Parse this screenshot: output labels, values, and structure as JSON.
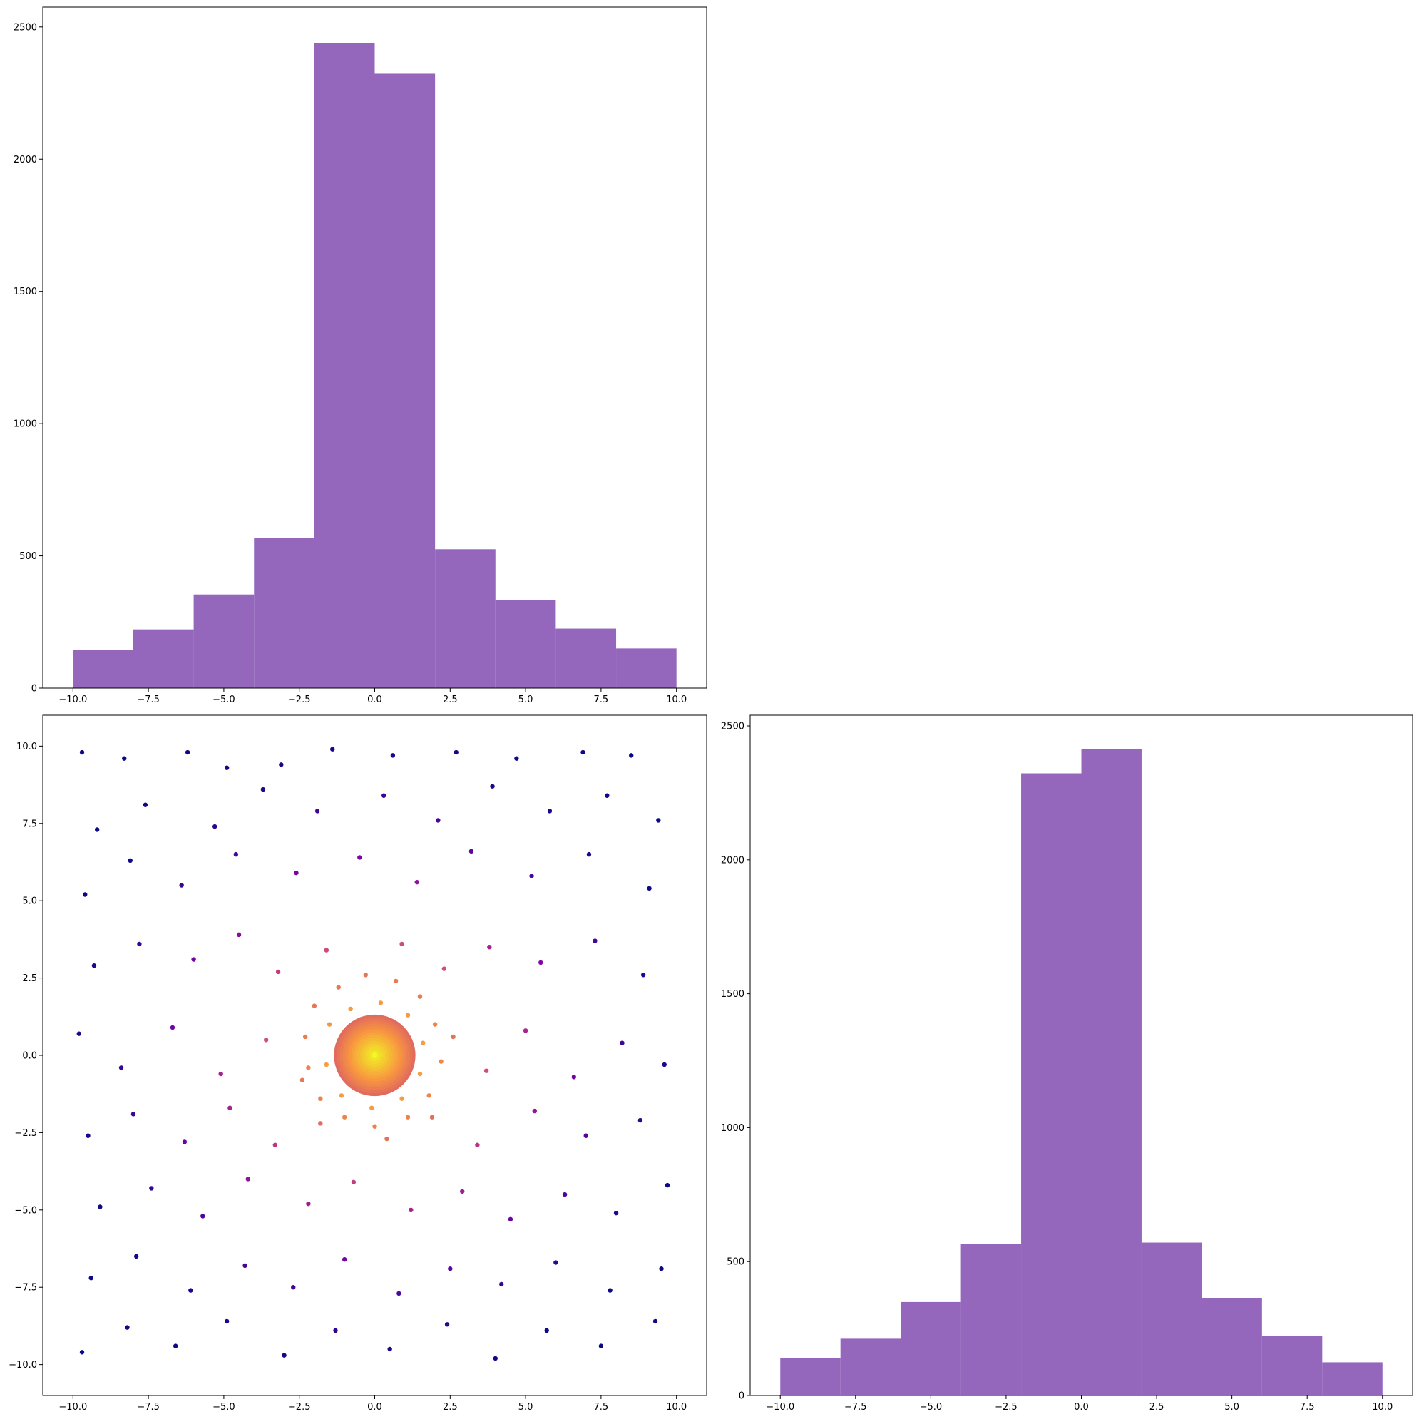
{
  "colors": {
    "hist_bar": "#9467bd",
    "axis": "#000000",
    "scatter_colormap": "plasma"
  },
  "chart_data": [
    {
      "type": "bar",
      "panel": "top-left",
      "bin_edges": [
        -10,
        -8,
        -6,
        -4,
        -2,
        0,
        2,
        4,
        6,
        8,
        10
      ],
      "values": [
        143,
        222,
        354,
        568,
        2440,
        2323,
        525,
        332,
        225,
        150
      ],
      "xlim": [
        -11,
        11
      ],
      "ylim": [
        0,
        2575
      ],
      "xticks": [
        -10,
        -7.5,
        -5,
        -2.5,
        0,
        2.5,
        5,
        7.5,
        10
      ],
      "xtick_labels": [
        "−10.0",
        "−7.5",
        "−5.0",
        "−2.5",
        "0.0",
        "2.5",
        "5.0",
        "7.5",
        "10.0"
      ],
      "yticks": [
        0,
        500,
        1000,
        1500,
        2000,
        2500
      ],
      "ytick_labels": [
        "0",
        "500",
        "1000",
        "1500",
        "2000",
        "2500"
      ]
    },
    {
      "type": "scatter",
      "panel": "bottom-left",
      "xlim": [
        -11,
        11
      ],
      "ylim": [
        -11,
        11
      ],
      "xticks": [
        -10,
        -7.5,
        -5,
        -2.5,
        0,
        2.5,
        5,
        7.5,
        10
      ],
      "xtick_labels": [
        "−10.0",
        "−7.5",
        "−5.0",
        "−2.5",
        "0.0",
        "2.5",
        "5.0",
        "7.5",
        "10.0"
      ],
      "yticks": [
        -10,
        -7.5,
        -5,
        -2.5,
        0,
        2.5,
        5,
        7.5,
        10
      ],
      "ytick_labels": [
        "−10.0",
        "−7.5",
        "−5.0",
        "−2.5",
        "0.0",
        "2.5",
        "5.0",
        "7.5",
        "10.0"
      ],
      "color_encoding": "density (plasma colormap, yellow at center)",
      "points": [
        [
          -9.7,
          9.8
        ],
        [
          -8.3,
          9.6
        ],
        [
          -6.2,
          9.8
        ],
        [
          -4.9,
          9.3
        ],
        [
          -3.1,
          9.4
        ],
        [
          -1.4,
          9.9
        ],
        [
          0.6,
          9.7
        ],
        [
          2.7,
          9.8
        ],
        [
          4.7,
          9.6
        ],
        [
          6.9,
          9.8
        ],
        [
          8.5,
          9.7
        ],
        [
          -9.2,
          7.3
        ],
        [
          -7.6,
          8.1
        ],
        [
          -5.3,
          7.4
        ],
        [
          -3.7,
          8.6
        ],
        [
          -1.9,
          7.9
        ],
        [
          0.3,
          8.4
        ],
        [
          2.1,
          7.6
        ],
        [
          3.9,
          8.7
        ],
        [
          5.8,
          7.9
        ],
        [
          7.7,
          8.4
        ],
        [
          9.4,
          7.6
        ],
        [
          -9.6,
          5.2
        ],
        [
          -8.1,
          6.3
        ],
        [
          -6.4,
          5.5
        ],
        [
          -4.6,
          6.5
        ],
        [
          -2.6,
          5.9
        ],
        [
          -0.5,
          6.4
        ],
        [
          1.4,
          5.6
        ],
        [
          3.2,
          6.6
        ],
        [
          5.2,
          5.8
        ],
        [
          7.1,
          6.5
        ],
        [
          9.1,
          5.4
        ],
        [
          -9.3,
          2.9
        ],
        [
          -7.8,
          3.6
        ],
        [
          -6.0,
          3.1
        ],
        [
          -4.5,
          3.9
        ],
        [
          -3.2,
          2.7
        ],
        [
          -1.6,
          3.4
        ],
        [
          0.9,
          3.6
        ],
        [
          2.3,
          2.8
        ],
        [
          3.8,
          3.5
        ],
        [
          5.5,
          3.0
        ],
        [
          7.3,
          3.7
        ],
        [
          8.9,
          2.6
        ],
        [
          -9.8,
          0.7
        ],
        [
          -8.4,
          -0.4
        ],
        [
          -6.7,
          0.9
        ],
        [
          -5.1,
          -0.6
        ],
        [
          -3.6,
          0.5
        ],
        [
          -2.4,
          -0.8
        ],
        [
          2.6,
          0.6
        ],
        [
          3.7,
          -0.5
        ],
        [
          5.0,
          0.8
        ],
        [
          6.6,
          -0.7
        ],
        [
          8.2,
          0.4
        ],
        [
          9.6,
          -0.3
        ],
        [
          -9.5,
          -2.6
        ],
        [
          -8.0,
          -1.9
        ],
        [
          -6.3,
          -2.8
        ],
        [
          -4.8,
          -1.7
        ],
        [
          -3.3,
          -2.9
        ],
        [
          -1.8,
          -2.2
        ],
        [
          0.4,
          -2.7
        ],
        [
          1.9,
          -2.0
        ],
        [
          3.4,
          -2.9
        ],
        [
          5.3,
          -1.8
        ],
        [
          7.0,
          -2.6
        ],
        [
          8.8,
          -2.1
        ],
        [
          -9.1,
          -4.9
        ],
        [
          -7.4,
          -4.3
        ],
        [
          -5.7,
          -5.2
        ],
        [
          -4.2,
          -4.0
        ],
        [
          -2.2,
          -4.8
        ],
        [
          -0.7,
          -4.1
        ],
        [
          1.2,
          -5.0
        ],
        [
          2.9,
          -4.4
        ],
        [
          4.5,
          -5.3
        ],
        [
          6.3,
          -4.5
        ],
        [
          8.0,
          -5.1
        ],
        [
          9.7,
          -4.2
        ],
        [
          -9.4,
          -7.2
        ],
        [
          -7.9,
          -6.5
        ],
        [
          -6.1,
          -7.6
        ],
        [
          -4.3,
          -6.8
        ],
        [
          -2.7,
          -7.5
        ],
        [
          -1.0,
          -6.6
        ],
        [
          0.8,
          -7.7
        ],
        [
          2.5,
          -6.9
        ],
        [
          4.2,
          -7.4
        ],
        [
          6.0,
          -6.7
        ],
        [
          7.8,
          -7.6
        ],
        [
          9.5,
          -6.9
        ],
        [
          -9.7,
          -9.6
        ],
        [
          -8.2,
          -8.8
        ],
        [
          -6.6,
          -9.4
        ],
        [
          -4.9,
          -8.6
        ],
        [
          -3.0,
          -9.7
        ],
        [
          -1.3,
          -8.9
        ],
        [
          0.5,
          -9.5
        ],
        [
          2.4,
          -8.7
        ],
        [
          4.0,
          -9.8
        ],
        [
          5.7,
          -8.9
        ],
        [
          7.5,
          -9.4
        ],
        [
          9.3,
          -8.6
        ],
        [
          -2.0,
          1.6
        ],
        [
          -1.2,
          2.2
        ],
        [
          -0.3,
          2.6
        ],
        [
          0.7,
          2.4
        ],
        [
          1.5,
          1.9
        ],
        [
          2.0,
          1.0
        ],
        [
          2.2,
          -0.2
        ],
        [
          1.8,
          -1.3
        ],
        [
          1.1,
          -2.0
        ],
        [
          0.0,
          -2.3
        ],
        [
          -1.0,
          -2.0
        ],
        [
          -1.8,
          -1.4
        ],
        [
          -2.2,
          -0.4
        ],
        [
          -2.3,
          0.6
        ],
        [
          -1.5,
          1.0
        ],
        [
          -0.8,
          1.5
        ],
        [
          0.2,
          1.7
        ],
        [
          1.1,
          1.3
        ],
        [
          1.6,
          0.4
        ],
        [
          1.5,
          -0.6
        ],
        [
          0.9,
          -1.4
        ],
        [
          -0.1,
          -1.7
        ],
        [
          -1.1,
          -1.3
        ],
        [
          -1.6,
          -0.3
        ],
        [
          -0.9,
          0.5
        ],
        [
          -0.5,
          0.9
        ],
        [
          0.1,
          1.0
        ],
        [
          0.7,
          0.7
        ],
        [
          1.0,
          0.1
        ],
        [
          0.8,
          -0.6
        ],
        [
          0.3,
          -1.0
        ],
        [
          -0.4,
          -0.9
        ],
        [
          -0.9,
          -0.5
        ],
        [
          -1.0,
          0.0
        ],
        [
          -0.5,
          0.2
        ],
        [
          -0.2,
          0.5
        ],
        [
          0.3,
          0.4
        ],
        [
          0.5,
          -0.1
        ],
        [
          0.2,
          -0.5
        ],
        [
          -0.3,
          -0.4
        ],
        [
          0.0,
          0.2
        ],
        [
          0.1,
          -0.1
        ],
        [
          -0.1,
          0.0
        ],
        [
          0.0,
          0.0
        ]
      ]
    },
    {
      "type": "bar",
      "panel": "bottom-right",
      "bin_edges": [
        -10,
        -8,
        -6,
        -4,
        -2,
        0,
        2,
        4,
        6,
        8,
        10
      ],
      "values": [
        140,
        212,
        349,
        565,
        2323,
        2414,
        571,
        364,
        222,
        124
      ],
      "xlim": [
        -11,
        11
      ],
      "ylim": [
        0,
        2540
      ],
      "xticks": [
        -10,
        -7.5,
        -5,
        -2.5,
        0,
        2.5,
        5,
        7.5,
        10
      ],
      "xtick_labels": [
        "−10.0",
        "−7.5",
        "−5.0",
        "−2.5",
        "0.0",
        "2.5",
        "5.0",
        "7.5",
        "10.0"
      ],
      "yticks": [
        0,
        500,
        1000,
        1500,
        2000,
        2500
      ],
      "ytick_labels": [
        "0",
        "500",
        "1000",
        "1500",
        "2000",
        "2500"
      ]
    }
  ]
}
